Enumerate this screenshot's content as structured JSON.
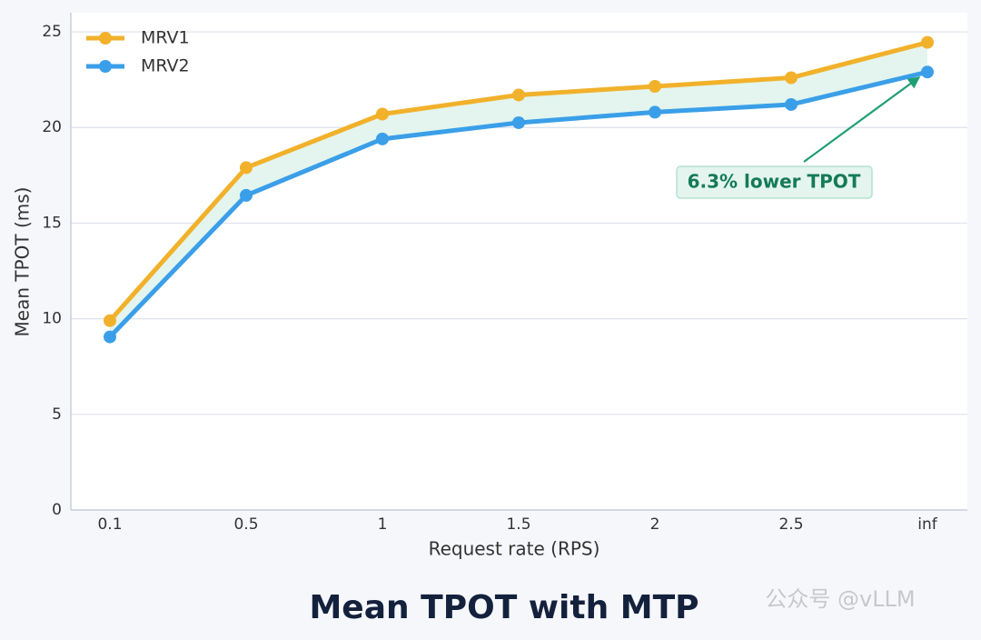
{
  "chart_data": {
    "type": "line",
    "title": "Mean TPOT with MTP",
    "x_label": "Request rate (RPS)",
    "y_label": "Mean TPOT (ms)",
    "categories": [
      "0.1",
      "0.5",
      "1",
      "1.5",
      "2",
      "2.5",
      "inf"
    ],
    "series": [
      {
        "name": "MRV1",
        "color": "#f2b12b",
        "values": [
          9.9,
          17.9,
          20.7,
          21.7,
          22.15,
          22.6,
          24.45
        ]
      },
      {
        "name": "MRV2",
        "color": "#3a9fe8",
        "values": [
          9.05,
          16.45,
          19.4,
          20.25,
          20.8,
          21.2,
          22.9
        ]
      }
    ],
    "ylim": [
      0,
      26
    ],
    "yticks": [
      0,
      5,
      10,
      15,
      20,
      25
    ],
    "grid": true,
    "legend": "upper-left",
    "fill_between_color": "#e3f5ee",
    "annotation": "6.3% lower TPOT",
    "watermark": "公众号 @vLLM"
  }
}
